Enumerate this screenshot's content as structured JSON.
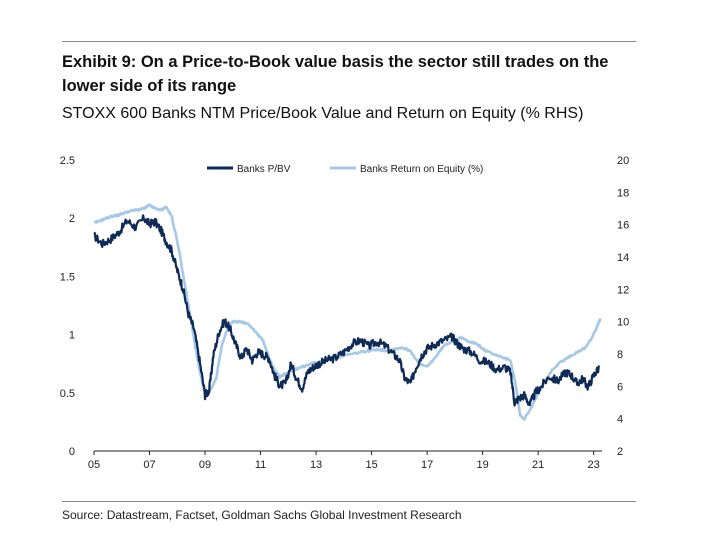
{
  "header": {
    "title": "Exhibit 9: On a Price-to-Book value basis the sector still trades on the lower side of its range",
    "subtitle": "STOXX 600 Banks NTM Price/Book Value and Return on Equity (% RHS)"
  },
  "footer": {
    "source": "Source: Datastream, Factset, Goldman Sachs Global Investment Research"
  },
  "chart_data": {
    "type": "line",
    "title": "",
    "xlabel": "",
    "ylabel": "",
    "y2label": "",
    "xlim": [
      2005,
      2023.3
    ],
    "ylim": [
      0,
      2.5
    ],
    "y2lim": [
      2,
      20
    ],
    "x_ticks": [
      2005,
      2007,
      2009,
      2011,
      2013,
      2015,
      2017,
      2019,
      2021,
      2023
    ],
    "x_tick_labels": [
      "05",
      "07",
      "09",
      "11",
      "13",
      "15",
      "17",
      "19",
      "21",
      "23"
    ],
    "y_ticks": [
      0,
      0.5,
      1,
      1.5,
      2,
      2.5
    ],
    "y_tick_labels": [
      "0",
      "0.5",
      "1",
      "1.5",
      "2",
      "2.5"
    ],
    "y2_ticks": [
      2,
      4,
      6,
      8,
      10,
      12,
      14,
      16,
      18,
      20
    ],
    "y2_tick_labels": [
      "2",
      "4",
      "6",
      "8",
      "10",
      "12",
      "14",
      "16",
      "18",
      "20"
    ],
    "grid": false,
    "legend_position": "top",
    "series": [
      {
        "name": "Banks P/BV",
        "axis": "left",
        "color": "#0e2a56",
        "x": [
          2005.0,
          2005.3,
          2005.6,
          2005.9,
          2006.2,
          2006.5,
          2006.8,
          2007.0,
          2007.2,
          2007.4,
          2007.6,
          2007.8,
          2008.0,
          2008.2,
          2008.4,
          2008.6,
          2008.8,
          2009.0,
          2009.15,
          2009.3,
          2009.5,
          2009.7,
          2009.9,
          2010.1,
          2010.3,
          2010.5,
          2010.7,
          2010.9,
          2011.1,
          2011.3,
          2011.5,
          2011.7,
          2011.9,
          2012.1,
          2012.3,
          2012.5,
          2012.7,
          2012.9,
          2013.1,
          2013.4,
          2013.7,
          2014.0,
          2014.3,
          2014.6,
          2014.9,
          2015.2,
          2015.5,
          2015.8,
          2016.0,
          2016.2,
          2016.4,
          2016.6,
          2016.8,
          2017.0,
          2017.3,
          2017.6,
          2017.9,
          2018.1,
          2018.3,
          2018.6,
          2018.9,
          2019.2,
          2019.5,
          2019.8,
          2020.0,
          2020.15,
          2020.3,
          2020.5,
          2020.7,
          2020.9,
          2021.1,
          2021.4,
          2021.7,
          2022.0,
          2022.2,
          2022.4,
          2022.6,
          2022.8,
          2023.0,
          2023.2
        ],
        "values": [
          1.85,
          1.78,
          1.82,
          1.88,
          1.98,
          1.92,
          2.0,
          1.95,
          1.97,
          1.9,
          1.8,
          1.72,
          1.55,
          1.4,
          1.18,
          1.05,
          0.78,
          0.48,
          0.52,
          0.82,
          1.02,
          1.12,
          1.05,
          0.92,
          0.8,
          0.88,
          0.78,
          0.85,
          0.83,
          0.8,
          0.65,
          0.56,
          0.58,
          0.75,
          0.62,
          0.54,
          0.68,
          0.72,
          0.75,
          0.78,
          0.8,
          0.85,
          0.92,
          0.95,
          0.9,
          0.94,
          0.9,
          0.83,
          0.78,
          0.62,
          0.58,
          0.72,
          0.82,
          0.88,
          0.92,
          0.95,
          0.98,
          0.92,
          0.88,
          0.85,
          0.78,
          0.76,
          0.7,
          0.72,
          0.68,
          0.42,
          0.45,
          0.48,
          0.4,
          0.5,
          0.55,
          0.64,
          0.6,
          0.68,
          0.65,
          0.58,
          0.62,
          0.55,
          0.65,
          0.72
        ]
      },
      {
        "name": "Banks Return on Equity (%)",
        "axis": "right",
        "color": "#a6c8e8",
        "x": [
          2005.0,
          2005.3,
          2005.6,
          2005.9,
          2006.2,
          2006.5,
          2006.8,
          2007.0,
          2007.2,
          2007.4,
          2007.6,
          2007.8,
          2008.0,
          2008.2,
          2008.4,
          2008.6,
          2008.8,
          2009.0,
          2009.2,
          2009.4,
          2009.6,
          2009.8,
          2010.0,
          2010.3,
          2010.6,
          2010.9,
          2011.1,
          2011.3,
          2011.5,
          2011.7,
          2011.9,
          2012.2,
          2012.5,
          2012.8,
          2013.1,
          2013.4,
          2013.7,
          2014.0,
          2014.3,
          2014.6,
          2014.9,
          2015.2,
          2015.5,
          2015.8,
          2016.1,
          2016.4,
          2016.7,
          2017.0,
          2017.3,
          2017.6,
          2017.9,
          2018.2,
          2018.5,
          2018.8,
          2019.1,
          2019.4,
          2019.7,
          2020.0,
          2020.2,
          2020.35,
          2020.5,
          2020.7,
          2020.9,
          2021.2,
          2021.5,
          2021.8,
          2022.1,
          2022.4,
          2022.7,
          2022.9,
          2023.1,
          2023.25
        ],
        "values": [
          16.1,
          16.3,
          16.5,
          16.6,
          16.8,
          16.9,
          17.0,
          17.2,
          17.0,
          16.9,
          17.1,
          16.5,
          15.0,
          13.0,
          11.0,
          9.0,
          7.0,
          5.5,
          5.8,
          6.5,
          8.5,
          9.5,
          10.0,
          10.0,
          9.8,
          9.2,
          8.8,
          7.8,
          7.0,
          6.6,
          6.8,
          7.0,
          7.2,
          7.4,
          7.5,
          7.7,
          7.8,
          7.9,
          8.0,
          8.1,
          8.2,
          8.3,
          8.2,
          8.3,
          8.4,
          8.2,
          7.4,
          7.2,
          7.8,
          8.5,
          8.8,
          9.0,
          8.8,
          8.6,
          8.2,
          8.0,
          7.8,
          7.6,
          6.0,
          4.2,
          4.0,
          4.5,
          5.2,
          6.2,
          7.0,
          7.5,
          7.8,
          8.1,
          8.4,
          8.9,
          9.6,
          10.2
        ]
      }
    ]
  }
}
